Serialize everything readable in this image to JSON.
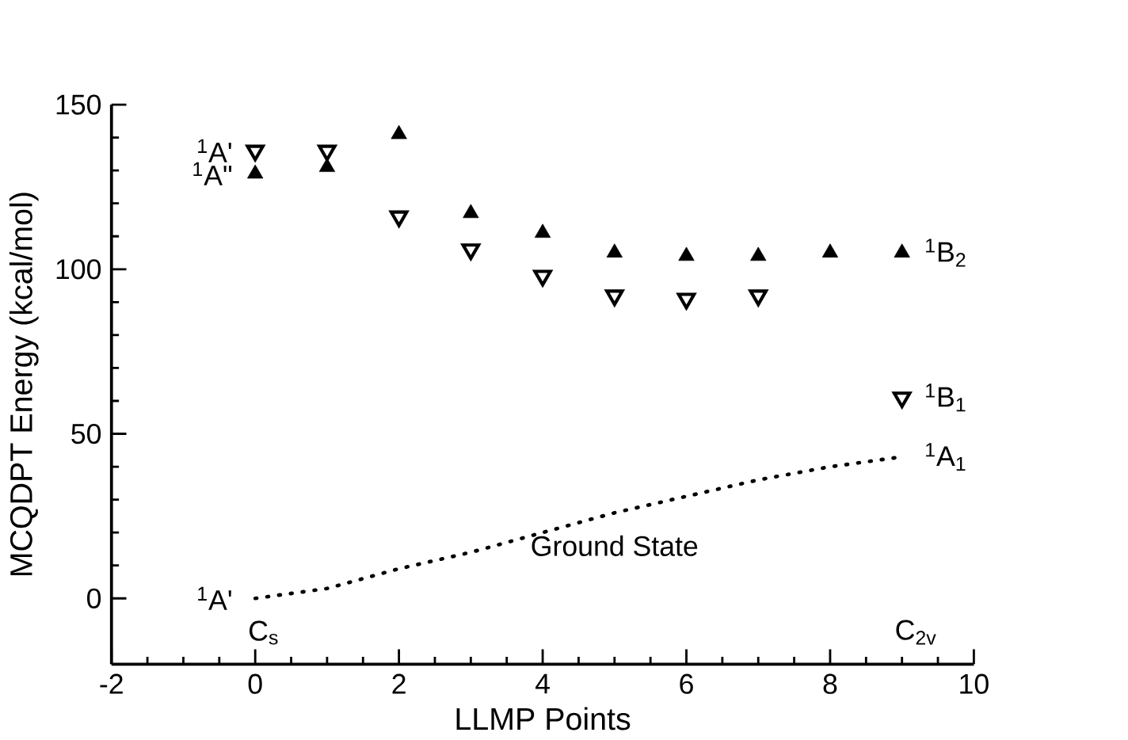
{
  "chart_data": {
    "type": "scatter",
    "xlabel": "LLMP Points",
    "ylabel": "MCQDPT Energy (kcal/mol)",
    "xlim": [
      -2,
      10
    ],
    "ylim": [
      -20,
      150
    ],
    "xticks": [
      -2,
      0,
      2,
      4,
      6,
      8,
      10
    ],
    "yticks": [
      0,
      50,
      100,
      150
    ],
    "series": [
      {
        "color": "#000000",
        "marker": "triangle",
        "x": [
          0,
          1,
          2,
          3,
          4,
          5,
          6,
          7,
          8,
          9
        ],
        "values": [
          129,
          131,
          141,
          117,
          111,
          105,
          104,
          104,
          105,
          105
        ]
      },
      {
        "color": "#000000",
        "marker": "triangle-down",
        "x": [
          0,
          1,
          2,
          3,
          4,
          5,
          6,
          7,
          9
        ],
        "values": [
          136,
          136,
          116,
          106,
          98,
          92,
          91,
          92,
          61
        ]
      },
      {
        "type": "line",
        "color": "#000000",
        "marker": "none",
        "line_style": "dotted",
        "x": [
          0,
          1,
          2,
          3,
          4,
          5,
          6,
          7,
          8,
          9
        ],
        "values": [
          0,
          3,
          9,
          14,
          20,
          26,
          31,
          36,
          40,
          43
        ]
      }
    ],
    "annotations": [
      {
        "text": "$^{1}$A'",
        "x": 0,
        "y": 136
      },
      {
        "text": "$^{1}$A\"",
        "x": 0,
        "y": 129
      },
      {
        "text": "$^{1}$B$_{2}$",
        "x": 9,
        "y": 105
      },
      {
        "text": "$^{1}$B$_{1}$",
        "x": 9,
        "y": 61
      },
      {
        "text": "$^{1}$A$_{1}$",
        "x": 9,
        "y": 43
      },
      {
        "text": "$^{1}$A'",
        "x": 0,
        "y": 0
      },
      {
        "text": "Ground State",
        "x": 5,
        "y": 26
      },
      "C$_{s}$",
      "C$_{2v}$"
    ]
  }
}
